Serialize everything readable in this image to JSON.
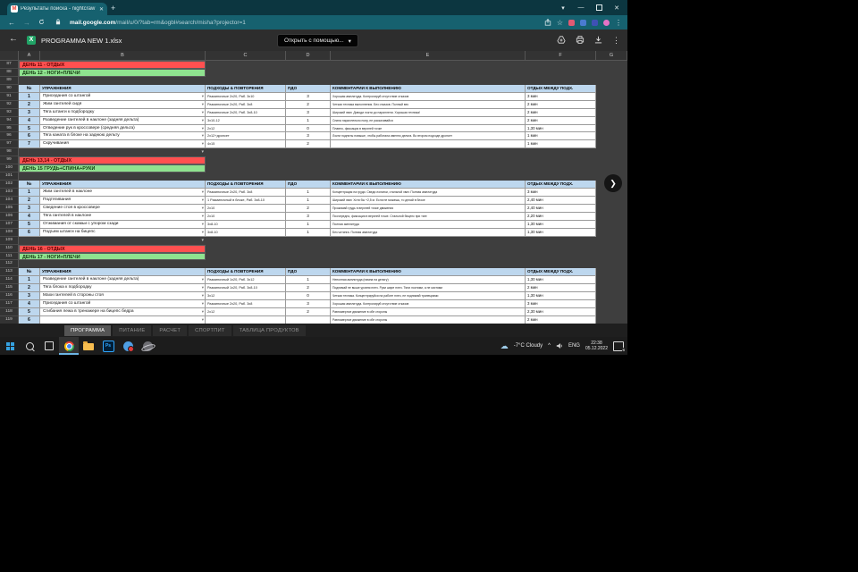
{
  "browser": {
    "tab_title": "Результаты поиска - nightcraw",
    "tab_close": "✕",
    "new_tab": "+",
    "url_domain": "mail.google.com",
    "url_path": "/mail/u/0/?tab=rm&ogbl#search/misha?projector=1",
    "controls": {
      "tab_search": "▾",
      "minimize": "—",
      "close": "✕"
    },
    "accent_teal": "#16616f",
    "extension_colors": [
      "#e05a73",
      "#4a7bd0",
      "#3f51b5",
      "#e573c7"
    ]
  },
  "viewer": {
    "back": "←",
    "file_icon": "X",
    "filename": "PROGRAMMA NEW 1.xlsx",
    "open_with": "Открыть с помощью...",
    "open_with_caret": "▾"
  },
  "sheet": {
    "col_letters": [
      "A",
      "B",
      "C",
      "D",
      "E",
      "F",
      "G"
    ],
    "columns": {
      "no": "№",
      "ex": "УПРАЖНЕНИЯ",
      "sets": "ПОДХОДЫ & ПОВТОРЕНИЯ",
      "pdo": "ПДО",
      "comment": "КОММЕНТАРИИ К ВЫПОЛНЕНИЮ",
      "rest": "ОТДЫХ МЕЖДУ ПОДХ."
    },
    "day_red_bg": "#ff5050",
    "day_green_bg": "#8fe28f",
    "header_bg": "#bdd7ee",
    "filter_arrow": "▾",
    "next_button": "❯",
    "rows": [
      {
        "n": "87",
        "t": "red",
        "label": "ДЕНЬ 11 - ОТДЫХ"
      },
      {
        "n": "88",
        "t": "green",
        "label": "ДЕНЬ 12 - НОГИ+ПЛЕЧИ"
      },
      {
        "n": "89",
        "t": "empty"
      },
      {
        "n": "90",
        "t": "head"
      },
      {
        "n": "91",
        "t": "ex",
        "no": "1",
        "ex": "Приседания со штангой",
        "sets": "Разминочные 2x20, Раб. 3x10",
        "pdo": "3",
        "comment": "Хорошая амплитуда. Контролируй отсутствие отказов",
        "rest": "3 мин"
      },
      {
        "n": "92",
        "t": "ex",
        "no": "2",
        "ex": "Жим гантелей сидя",
        "sets": "Разминочные 2x20, Раб. 3x8",
        "pdo": "2",
        "comment": "Четкая техника выполнения. Без отказов. Полный вес",
        "rest": "2 мин"
      },
      {
        "n": "93",
        "t": "ex",
        "no": "3",
        "ex": "Тяга штанги к подбородку",
        "sets": "Разминочные 2x20, Раб. 3x8-10",
        "pdo": "3",
        "comment": "Широкий хват. Доводи локти до параллели. Хорошая техника!",
        "rest": "2 мин"
      },
      {
        "n": "94",
        "t": "ex",
        "no": "4",
        "ex": "Разведение гантелей в наклоне (задняя дельта)",
        "sets": "3x10-12",
        "pdo": "1",
        "comment": "Спина параллельно полу, не раскачивайся",
        "rest": "2 мин"
      },
      {
        "n": "95",
        "t": "ex",
        "no": "5",
        "ex": "Отведение рук в кроссовере (средняя дельта)",
        "sets": "2x12",
        "pdo": "0",
        "comment": "Плавно, фиксация в верхней точке",
        "rest": "1,30 мин"
      },
      {
        "n": "96",
        "t": "ex",
        "no": "6",
        "ex": "Тяга каната в блоке на заднюю дельту",
        "sets": "2x12+дропсет",
        "pdo": "3",
        "comment": "Локти подняты повыше, чтобы работала именно дельта. Во втором подходе дропсет",
        "rest": "1 мин"
      },
      {
        "n": "97",
        "t": "ex",
        "no": "7",
        "ex": "Скручивания",
        "sets": "4x15",
        "pdo": "2",
        "comment": "",
        "rest": "1 мин"
      },
      {
        "n": "98",
        "t": "arrow"
      },
      {
        "n": "99",
        "t": "red",
        "label": "ДЕНЬ 13,14 - ОТДЫХ"
      },
      {
        "n": "100",
        "t": "green",
        "label": "ДЕНЬ 15 ГРУДЬ+СПИНА+РУКИ"
      },
      {
        "n": "101",
        "t": "empty"
      },
      {
        "n": "102",
        "t": "head"
      },
      {
        "n": "103",
        "t": "ex",
        "no": "1",
        "ex": "Жим гантелей в наклоне",
        "sets": "Разминочные 2x20, Раб. 3x8",
        "pdo": "1",
        "comment": "Концентрация на груди. Сведи лопатки, стальной хват. Полная амплитуда",
        "rest": "3 мин"
      },
      {
        "n": "104",
        "t": "ex",
        "no": "2",
        "ex": "Подтягивания",
        "sets": "1 Разминочный в блоке, Раб. 3x8-10",
        "pdo": "1",
        "comment": "Широкий хват. Хотя бы +2,5 кг. Если не можешь, то делай в блоке",
        "rest": "2,40 мин"
      },
      {
        "n": "105",
        "t": "ex",
        "no": "3",
        "ex": "Сведение стоя в кроссовере",
        "sets": "2x10",
        "pdo": "2",
        "comment": "Прожимай грудь в верхней точке движения",
        "rest": "2,40 мин"
      },
      {
        "n": "106",
        "t": "ex",
        "no": "4",
        "ex": "Тяга гантелей в наклоне",
        "sets": "2x10",
        "pdo": "3",
        "comment": "Поочередно, фиксация в верхней точке. Стальной бицепс при тяге",
        "rest": "2,20 мин"
      },
      {
        "n": "107",
        "t": "ex",
        "no": "5",
        "ex": "Отжимания от скамьи с упором сзади",
        "sets": "3x8-10",
        "pdo": "1",
        "comment": "Полная амплитуда",
        "rest": "1,30 мин"
      },
      {
        "n": "108",
        "t": "ex",
        "no": "6",
        "ex": "Подъем штанги на бицепс",
        "sets": "3x8-10",
        "pdo": "1",
        "comment": "Без читинга. Полная амплитуда",
        "rest": "1,30 мин"
      },
      {
        "n": "109",
        "t": "arrow"
      },
      {
        "n": "110",
        "t": "red",
        "label": "ДЕНЬ 16 - ОТДЫХ"
      },
      {
        "n": "111",
        "t": "green",
        "label": "ДЕНЬ 17 - НОГИ+ПЛЕЧИ"
      },
      {
        "n": "112",
        "t": "empty"
      },
      {
        "n": "113",
        "t": "head"
      },
      {
        "n": "114",
        "t": "ex",
        "no": "1",
        "ex": "Разведение гантелей в наклоне (задняя дельта)",
        "sets": "Разминочный 1x20, Раб. 3x12",
        "pdo": "1",
        "comment": "Неполная амплитуда (пампа на дельту)",
        "rest": "1,30 мин"
      },
      {
        "n": "115",
        "t": "ex",
        "no": "2",
        "ex": "Тяга блока к подбородку",
        "sets": "Разминочный 1x20, Раб. 3x8-10",
        "pdo": "2",
        "comment": "Поднимай не выше уровня плеч. Руки шире плеч. Тяни локтями, а не кистями",
        "rest": "2 мин"
      },
      {
        "n": "116",
        "t": "ex",
        "no": "3",
        "ex": "Махи гантелей в стороны стоя",
        "sets": "3x12",
        "pdo": "0",
        "comment": "Четкая техника. Концентрируйся на работе плеч, не поднимай трапециями",
        "rest": "1,30 мин"
      },
      {
        "n": "117",
        "t": "ex",
        "no": "4",
        "ex": "Приседания со штангой",
        "sets": "Разминочные 2x20, Раб. 3x8",
        "pdo": "3",
        "comment": "Хорошая амплитуда. Контролируй отсутствие отказов",
        "rest": "3 мин"
      },
      {
        "n": "118",
        "t": "ex",
        "no": "5",
        "ex": "Сгибания лежа в тренажере на бицепс бедра",
        "sets": "2x12",
        "pdo": "2",
        "comment": "Равномерное движение в обе стороны",
        "rest": "2,30 мин"
      },
      {
        "n": "119",
        "t": "ex",
        "no": "6",
        "ex": "",
        "sets": "",
        "pdo": "",
        "comment": "Равномерное движение в обе стороны",
        "rest": "2 мин"
      }
    ]
  },
  "sheet_tabs": {
    "items": [
      "ПРОГРАММА",
      "ПИТАНИЕ",
      "РАСЧЕТ",
      "СПОРТПИТ",
      "ТАБЛИЦА ПРОДУКТОВ"
    ],
    "active": "ПРОГРАММА"
  },
  "taskbar": {
    "weather_icon": "☁",
    "weather": "-7°C Cloudy",
    "tray_expand": "^",
    "lang": "ENG",
    "time": "22:38",
    "date": "05.12.2022",
    "notification_count": "6",
    "photoshop_label": "Ps"
  }
}
